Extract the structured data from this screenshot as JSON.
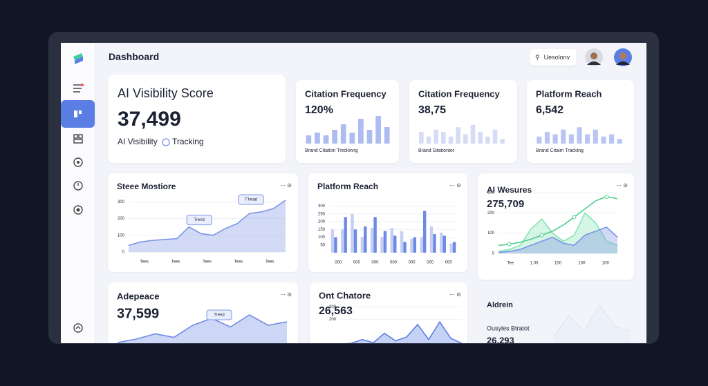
{
  "header": {
    "title": "Dashboard",
    "search": "Uesolonv"
  },
  "cards": [
    {
      "title": "AI Visibility Score",
      "value": "37,499",
      "caption": "AI Visibility",
      "tag": "Tracking"
    },
    {
      "title": "Citation Frequency",
      "value": "120%",
      "caption": "Brand Citation Treckinng",
      "chart": {
        "ylim": [
          0,
          10
        ],
        "series": [
          {
            "type": "bar",
            "color": "#aebdf0",
            "values": [
              3,
              4,
              3,
              5,
              7,
              4,
              9,
              5,
              10,
              6
            ]
          }
        ]
      }
    },
    {
      "title": "Citation Frequency",
      "value": "38,75",
      "caption": "Brand Sitationtor",
      "chart": {
        "ylim": [
          0,
          10
        ],
        "series": [
          {
            "type": "bar",
            "color": "#d5dcf5",
            "values": [
              5,
              3,
              6,
              5,
              3,
              7,
              4,
              8,
              5,
              3,
              6,
              2
            ]
          }
        ]
      }
    },
    {
      "title": "Platform Reach",
      "value": "6,542",
      "caption": "Brand Citaim Tracking",
      "chart": {
        "ylim": [
          0,
          10
        ],
        "series": [
          {
            "type": "bar",
            "color": "#b9c6f1",
            "values": [
              3,
              5,
              4,
              6,
              4,
              7,
              4,
              6,
              3,
              4,
              2
            ]
          }
        ]
      }
    },
    {
      "title": "Steee Mostiore",
      "chart": {
        "ylim": [
          0,
          330
        ],
        "yticks": [
          0,
          100,
          200,
          300
        ],
        "xlabels": [
          "Tees",
          "Tees",
          "Tees",
          "Tees",
          "Tees"
        ],
        "annotations": [
          "Trend",
          "T'head"
        ],
        "series": [
          {
            "type": "area",
            "color": "#7d95e6",
            "values": [
              40,
              60,
              70,
              75,
              80,
              150,
              110,
              100,
              140,
              170,
              230,
              240,
              260,
              310
            ]
          }
        ]
      }
    },
    {
      "title": "Platform Reach",
      "chart": {
        "ylim": [
          0,
          320
        ],
        "yticks": [
          50,
          100,
          150,
          200,
          250,
          300
        ],
        "xlabels": [
          "000",
          "000",
          "000",
          "000",
          "000",
          "000",
          "000"
        ],
        "series": [
          {
            "type": "bar",
            "color": "#c4cff3",
            "values": [
              150,
              150,
              250,
              100,
              160,
              100,
              160,
              140,
              90,
              100,
              170,
              130,
              60
            ]
          },
          {
            "type": "bar",
            "color": "#6f8ae3",
            "values": [
              100,
              230,
              150,
              170,
              230,
              140,
              110,
              70,
              100,
              270,
              120,
              110,
              70
            ]
          }
        ]
      }
    },
    {
      "title": "AI Wesures",
      "value": "275,709",
      "chart": {
        "ylim": [
          0,
          300
        ],
        "yticks": [
          0,
          100,
          200,
          300
        ],
        "xlabels": [
          "Tee",
          "1.00",
          "100",
          "100",
          "100"
        ],
        "series": [
          {
            "type": "area",
            "color": "#86e3b4",
            "values": [
              10,
              20,
              40,
              120,
              170,
              100,
              60,
              90,
              200,
              150,
              60,
              40
            ]
          },
          {
            "type": "area",
            "color": "#7b93e6",
            "values": [
              5,
              10,
              20,
              40,
              60,
              80,
              50,
              40,
              90,
              110,
              130,
              80
            ]
          },
          {
            "type": "line",
            "color": "#4fcf8c",
            "values": [
              40,
              45,
              55,
              70,
              90,
              110,
              140,
              180,
              220,
              260,
              280,
              270
            ]
          }
        ]
      }
    },
    {
      "title": "Adepeace",
      "value": "37,599",
      "chart": {
        "ylim": [
          0,
          100
        ],
        "annotations": [
          "Trend"
        ],
        "series": [
          {
            "type": "area",
            "color": "#6f8ae3",
            "values": [
              10,
              20,
              35,
              25,
              60,
              80,
              55,
              90,
              60,
              70
            ]
          }
        ]
      }
    },
    {
      "title": "Ont Chatore",
      "value": "26,563",
      "chart": {
        "ylim": [
          0,
          330
        ],
        "yticks": [
          200,
          300
        ],
        "series": [
          {
            "type": "area",
            "color": "#5d7ee3",
            "values": [
              5,
              10,
              40,
              15,
              90,
              30,
              60,
              160,
              40,
              180,
              50,
              10
            ]
          }
        ]
      }
    },
    {
      "title": "Aldrein",
      "caption": "Ousyles Btratot",
      "value": "26,293",
      "chart": {
        "ylim": [
          0,
          100
        ],
        "series": [
          {
            "type": "area",
            "color": "#e3e8f6",
            "values": [
              20,
              60,
              30,
              80,
              40,
              30
            ]
          }
        ]
      }
    }
  ]
}
